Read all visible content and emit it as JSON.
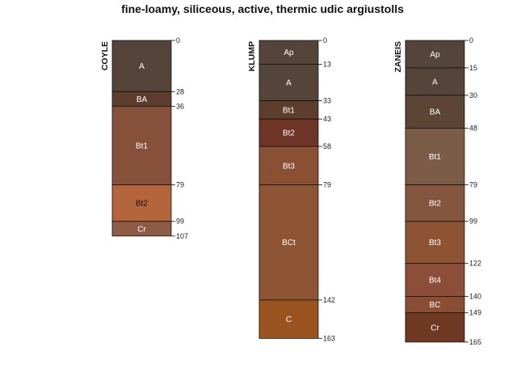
{
  "title": "fine-loamy, siliceous, active, thermic udic argiustolls",
  "chart_data": {
    "type": "soil-profile",
    "depth_unit": "cm",
    "profiles": [
      {
        "name": "COYLE",
        "horizons": [
          {
            "name": "A",
            "top": 0,
            "bottom": 28,
            "color": "#554439",
            "text_color": "#ffffff"
          },
          {
            "name": "BA",
            "top": 28,
            "bottom": 36,
            "color": "#5d3d2b",
            "text_color": "#ffffff"
          },
          {
            "name": "Bt1",
            "top": 36,
            "bottom": 79,
            "color": "#87503a",
            "text_color": "#ffffff"
          },
          {
            "name": "Bt2",
            "top": 79,
            "bottom": 99,
            "color": "#b5653c",
            "text_color": "#111111"
          },
          {
            "name": "Cr",
            "top": 99,
            "bottom": 107,
            "color": "#8e5c45",
            "text_color": "#ffffff"
          }
        ]
      },
      {
        "name": "KLUMP",
        "horizons": [
          {
            "name": "Ap",
            "top": 0,
            "bottom": 13,
            "color": "#554439",
            "text_color": "#ffffff"
          },
          {
            "name": "A",
            "top": 13,
            "bottom": 33,
            "color": "#554439",
            "text_color": "#ffffff"
          },
          {
            "name": "Bt1",
            "top": 33,
            "bottom": 43,
            "color": "#5d3d2b",
            "text_color": "#ffffff"
          },
          {
            "name": "Bt2",
            "top": 43,
            "bottom": 58,
            "color": "#6e3526",
            "text_color": "#ffffff"
          },
          {
            "name": "Bt3",
            "top": 58,
            "bottom": 79,
            "color": "#8a5033",
            "text_color": "#ffffff"
          },
          {
            "name": "BCt",
            "top": 79,
            "bottom": 142,
            "color": "#8d5533",
            "text_color": "#ffffff"
          },
          {
            "name": "C",
            "top": 142,
            "bottom": 163,
            "color": "#9b541f",
            "text_color": "#ffffff"
          }
        ]
      },
      {
        "name": "ZANEIS",
        "horizons": [
          {
            "name": "Ap",
            "top": 0,
            "bottom": 15,
            "color": "#554439",
            "text_color": "#ffffff"
          },
          {
            "name": "A",
            "top": 15,
            "bottom": 30,
            "color": "#554439",
            "text_color": "#ffffff"
          },
          {
            "name": "BA",
            "top": 30,
            "bottom": 48,
            "color": "#5c4535",
            "text_color": "#ffffff"
          },
          {
            "name": "Bt1",
            "top": 48,
            "bottom": 79,
            "color": "#7b5c48",
            "text_color": "#ffffff"
          },
          {
            "name": "Bt2",
            "top": 79,
            "bottom": 99,
            "color": "#85563f",
            "text_color": "#ffffff"
          },
          {
            "name": "Bt3",
            "top": 99,
            "bottom": 122,
            "color": "#8c5432",
            "text_color": "#ffffff"
          },
          {
            "name": "Bt4",
            "top": 122,
            "bottom": 140,
            "color": "#8d4e39",
            "text_color": "#ffffff"
          },
          {
            "name": "BC",
            "top": 140,
            "bottom": 149,
            "color": "#8a4e34",
            "text_color": "#ffffff"
          },
          {
            "name": "Cr",
            "top": 149,
            "bottom": 165,
            "color": "#6f3823",
            "text_color": "#ffffff"
          }
        ]
      }
    ]
  }
}
